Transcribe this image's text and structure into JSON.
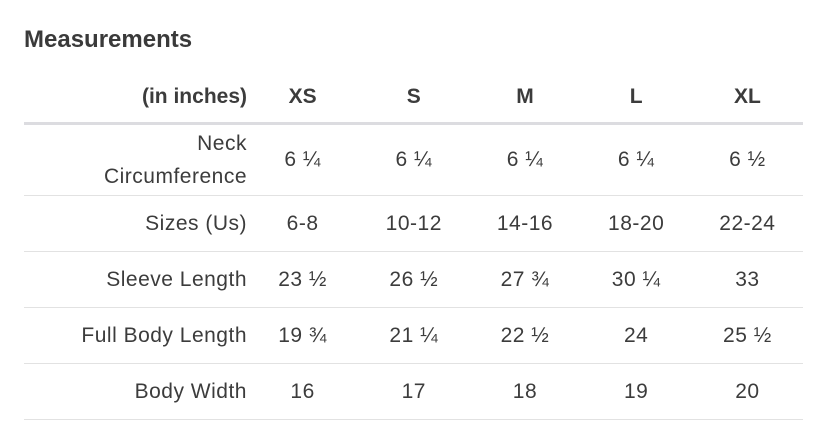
{
  "title": "Measurements",
  "unit_label": "(in inches)",
  "sizes": [
    "XS",
    "S",
    "M",
    "L",
    "XL"
  ],
  "rows": [
    {
      "label_line1": "Neck",
      "label_line2": "Circumference",
      "values": [
        "6 ¼",
        "6 ¼",
        "6 ¼",
        "6 ¼",
        "6 ½"
      ]
    },
    {
      "label": "Sizes (Us)",
      "values": [
        "6-8",
        "10-12",
        "14-16",
        "18-20",
        "22-24"
      ]
    },
    {
      "label": "Sleeve Length",
      "values": [
        "23 ½",
        "26 ½",
        "27 ¾",
        "30 ¼",
        "33"
      ]
    },
    {
      "label": "Full Body Length",
      "values": [
        "19 ¾",
        "21 ¼",
        "22 ½",
        "24",
        "25 ½"
      ]
    },
    {
      "label": "Body Width",
      "values": [
        "16",
        "17",
        "18",
        "19",
        "20"
      ]
    }
  ]
}
